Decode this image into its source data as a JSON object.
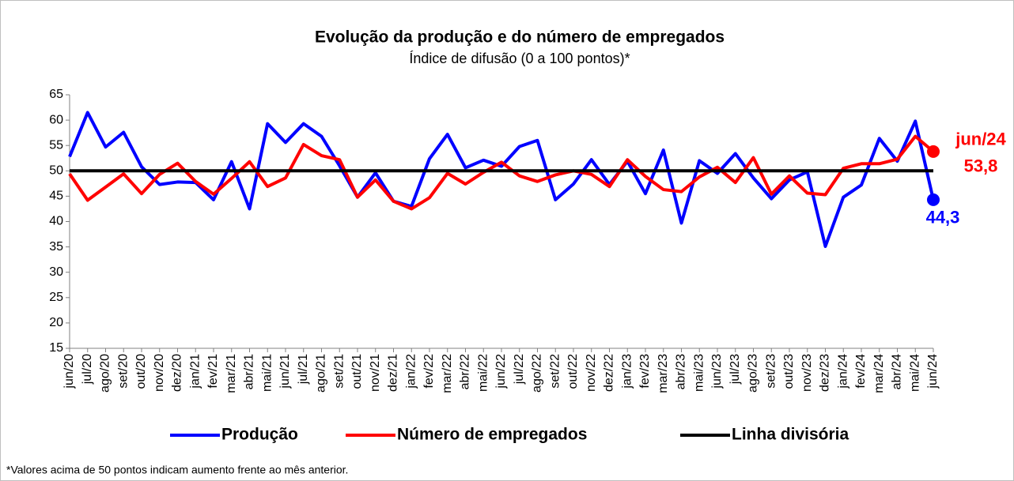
{
  "chart_data": {
    "type": "line",
    "title": "Evolução da produção e do número de empregados",
    "subtitle": "Índice de difusão (0 a 100 pontos)*",
    "footnote": "*Valores acima de 50 pontos indicam aumento frente ao mês anterior.",
    "annotation": "jun/24",
    "categories": [
      "jun/20",
      "jul/20",
      "ago/20",
      "set/20",
      "out/20",
      "nov/20",
      "dez/20",
      "jan/21",
      "fev/21",
      "mar/21",
      "abr/21",
      "mai/21",
      "jun/21",
      "jul/21",
      "ago/21",
      "set/21",
      "out/21",
      "nov/21",
      "dez/21",
      "jan/22",
      "fev/22",
      "mar/22",
      "abr/22",
      "mai/22",
      "jun/22",
      "jul/22",
      "ago/22",
      "set/22",
      "out/22",
      "nov/22",
      "dez/22",
      "jan/23",
      "fev/23",
      "mar/23",
      "abr/23",
      "mai/23",
      "jun/23",
      "jul/23",
      "ago/23",
      "set/23",
      "out/23",
      "nov/23",
      "dez/23",
      "jan/24",
      "fev/24",
      "mar/24",
      "abr/24",
      "mai/24",
      "jun/24"
    ],
    "series": [
      {
        "name": "Produção",
        "color": "#0000ff",
        "values": [
          52.8,
          61.5,
          54.7,
          57.6,
          50.8,
          47.3,
          47.8,
          47.7,
          44.3,
          51.8,
          42.5,
          59.3,
          55.6,
          59.3,
          56.8,
          51.0,
          44.8,
          49.6,
          44.0,
          43.0,
          52.4,
          57.2,
          50.6,
          52.1,
          50.9,
          54.8,
          56.0,
          44.3,
          47.4,
          52.2,
          47.3,
          51.9,
          45.5,
          54.1,
          39.7,
          52.0,
          49.5,
          53.4,
          48.6,
          44.5,
          48.2,
          49.8,
          35.1,
          44.8,
          47.2,
          56.4,
          51.9,
          59.8,
          44.3
        ],
        "value_labels": [
          null,
          null,
          null,
          null,
          null,
          null,
          null,
          null,
          null,
          null,
          null,
          null,
          null,
          null,
          null,
          null,
          null,
          null,
          null,
          null,
          null,
          null,
          null,
          null,
          null,
          null,
          null,
          null,
          null,
          null,
          null,
          null,
          null,
          null,
          null,
          null,
          null,
          null,
          null,
          null,
          null,
          null,
          null,
          null,
          null,
          null,
          null,
          null,
          "44,3"
        ]
      },
      {
        "name": "Número de empregados",
        "color": "#ff0000",
        "values": [
          49.4,
          44.2,
          46.8,
          49.4,
          45.5,
          49.3,
          51.5,
          47.9,
          45.4,
          48.5,
          51.8,
          46.9,
          48.6,
          55.2,
          53.0,
          52.2,
          44.8,
          48.2,
          44.0,
          42.5,
          44.7,
          49.5,
          47.4,
          49.7,
          51.7,
          49.0,
          47.9,
          49.2,
          50.0,
          49.3,
          46.9,
          52.2,
          48.9,
          46.3,
          45.9,
          48.8,
          50.7,
          47.7,
          52.6,
          45.4,
          49.0,
          45.6,
          45.3,
          50.5,
          51.4,
          51.4,
          52.3,
          56.8,
          53.8
        ],
        "value_labels": [
          null,
          null,
          null,
          null,
          null,
          null,
          null,
          null,
          null,
          null,
          null,
          null,
          null,
          null,
          null,
          null,
          null,
          null,
          null,
          null,
          null,
          null,
          null,
          null,
          null,
          null,
          null,
          null,
          null,
          null,
          null,
          null,
          null,
          null,
          null,
          null,
          null,
          null,
          null,
          null,
          null,
          null,
          null,
          null,
          null,
          null,
          null,
          null,
          "53,8"
        ]
      },
      {
        "name": "Linha divisória",
        "color": "#000000",
        "values": [
          50,
          50,
          50,
          50,
          50,
          50,
          50,
          50,
          50,
          50,
          50,
          50,
          50,
          50,
          50,
          50,
          50,
          50,
          50,
          50,
          50,
          50,
          50,
          50,
          50,
          50,
          50,
          50,
          50,
          50,
          50,
          50,
          50,
          50,
          50,
          50,
          50,
          50,
          50,
          50,
          50,
          50,
          50,
          50,
          50,
          50,
          50,
          50,
          50
        ]
      }
    ],
    "ylim": [
      15,
      65
    ],
    "yticks": [
      15,
      20,
      25,
      30,
      35,
      40,
      45,
      50,
      55,
      60,
      65
    ],
    "grid": false
  }
}
